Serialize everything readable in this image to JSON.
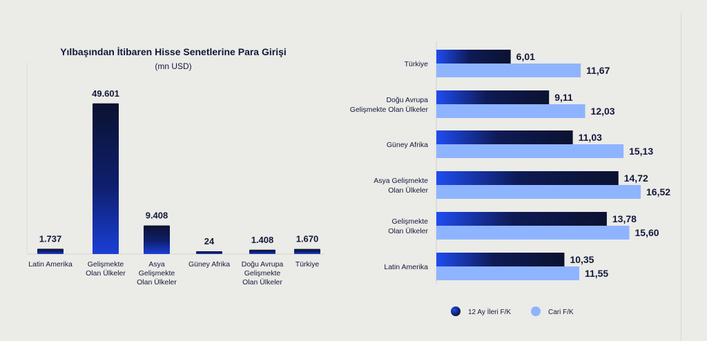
{
  "chart_data": [
    {
      "type": "bar",
      "title": "Yılbaşından İtibaren Hisse Senetlerine Para Girişi",
      "subtitle": "(mn USD)",
      "categories": [
        [
          "Latin Amerika"
        ],
        [
          "Gelişmekte",
          "Olan Ülkeler"
        ],
        [
          "Asya",
          "Gelişmekte",
          "Olan Ülkeler"
        ],
        [
          "Güney Afrika"
        ],
        [
          "Doğu Avrupa",
          "Gelişmekte",
          "Olan Ülkeler"
        ],
        [
          "Türkiye"
        ]
      ],
      "values": [
        1737,
        49601,
        9408,
        24,
        1408,
        1670
      ],
      "value_labels": [
        "1.737",
        "49.601",
        "9.408",
        "24",
        "1.408",
        "1.670"
      ],
      "ylim": [
        0,
        50000
      ],
      "grid": false,
      "colors": {
        "top": "#0b1230",
        "bottom": "#1a3fd6"
      }
    },
    {
      "type": "bar",
      "orientation": "horizontal",
      "categories": [
        [
          "Türkiye"
        ],
        [
          "Doğu Avrupa",
          "Gelişmekte Olan Ülkeler"
        ],
        [
          "Güney Afrika"
        ],
        [
          "Asya Gelişmekte",
          "Olan Ülkeler"
        ],
        [
          "Gelişmekte",
          "Olan Ülkeler"
        ],
        [
          "Latin Amerika"
        ]
      ],
      "series": [
        {
          "name": "12 Ay İleri F/K",
          "values": [
            6.01,
            9.11,
            11.03,
            14.72,
            13.78,
            10.35
          ],
          "value_labels": [
            "6,01",
            "9,11",
            "11,03",
            "14,72",
            "13,78",
            "10,35"
          ],
          "color": "#0b1230",
          "gradient_start": "#1f4cf0"
        },
        {
          "name": "Cari F/K",
          "values": [
            11.67,
            12.03,
            15.13,
            16.52,
            15.6,
            11.55
          ],
          "value_labels": [
            "11,67",
            "12,03",
            "15,13",
            "16,52",
            "15,60",
            "11,55"
          ],
          "color": "#8fb4ff"
        }
      ],
      "xlim": [
        0,
        16.52
      ],
      "grid": false,
      "legend": "bottom"
    }
  ]
}
